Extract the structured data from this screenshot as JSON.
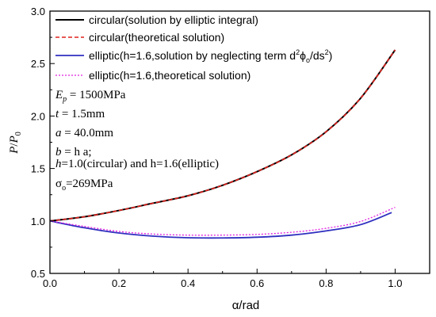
{
  "chart_data": {
    "type": "line",
    "xlabel_symbol": "α",
    "xlabel_unit": "/rad",
    "ylabel_main": "P",
    "ylabel_slash": "/",
    "ylabel_sub_base": "P",
    "ylabel_subscript": "0",
    "xlim": [
      0.0,
      1.1
    ],
    "ylim": [
      0.5,
      3.0
    ],
    "xticks": [
      "0.0",
      "0.2",
      "0.4",
      "0.6",
      "0.8",
      "1.0"
    ],
    "yticks": [
      "0.5",
      "1.0",
      "1.5",
      "2.0",
      "2.5",
      "3.0"
    ],
    "grid": false,
    "legend_position": "top-left",
    "series": [
      {
        "name": "circular(solution by elliptic integral)",
        "color": "#000000",
        "dash": "solid",
        "x": [
          0.0,
          0.1,
          0.2,
          0.3,
          0.4,
          0.5,
          0.6,
          0.7,
          0.8,
          0.9,
          1.0
        ],
        "y": [
          1.0,
          1.04,
          1.1,
          1.17,
          1.24,
          1.34,
          1.47,
          1.63,
          1.85,
          2.17,
          2.63
        ]
      },
      {
        "name": "circular(theoretical solution)",
        "color": "#e0201b",
        "dash": "dash",
        "x": [
          0.0,
          0.1,
          0.2,
          0.3,
          0.4,
          0.5,
          0.6,
          0.7,
          0.8,
          0.9,
          1.0
        ],
        "y": [
          1.0,
          1.04,
          1.1,
          1.17,
          1.24,
          1.34,
          1.47,
          1.63,
          1.85,
          2.17,
          2.63
        ]
      },
      {
        "name_parts": [
          "elliptic(h=1.6,solution by neglecting term d",
          "2",
          "ϕ",
          "o",
          "/ds",
          "2",
          ")"
        ],
        "color": "#2f2fc0",
        "dash": "solid",
        "x": [
          0.0,
          0.1,
          0.2,
          0.3,
          0.4,
          0.5,
          0.6,
          0.7,
          0.8,
          0.9,
          0.99
        ],
        "y": [
          1.0,
          0.935,
          0.885,
          0.855,
          0.84,
          0.838,
          0.845,
          0.865,
          0.905,
          0.965,
          1.08
        ]
      },
      {
        "name": "elliptic(h=1.6,theoretical solution)",
        "color": "#e020e0",
        "dash": "dot",
        "x": [
          0.0,
          0.1,
          0.2,
          0.3,
          0.4,
          0.5,
          0.6,
          0.7,
          0.8,
          0.9,
          1.0
        ],
        "y": [
          1.0,
          0.948,
          0.9,
          0.875,
          0.865,
          0.865,
          0.872,
          0.892,
          0.93,
          0.995,
          1.13
        ]
      }
    ],
    "annotations": [
      {
        "parts": [
          "E",
          "p",
          " = 1500MPa"
        ]
      },
      {
        "parts": [
          "t",
          "",
          " = 1.5mm"
        ]
      },
      {
        "parts": [
          "a",
          "",
          " = 40.0mm"
        ]
      },
      {
        "parts": [
          "b",
          "",
          " = h a;"
        ]
      },
      {
        "parts": [
          "h",
          "",
          "=1.0(circular) and h=1.6(elliptic)"
        ]
      },
      {
        "parts": [
          "σ",
          "o",
          "=269MPa"
        ]
      }
    ]
  }
}
